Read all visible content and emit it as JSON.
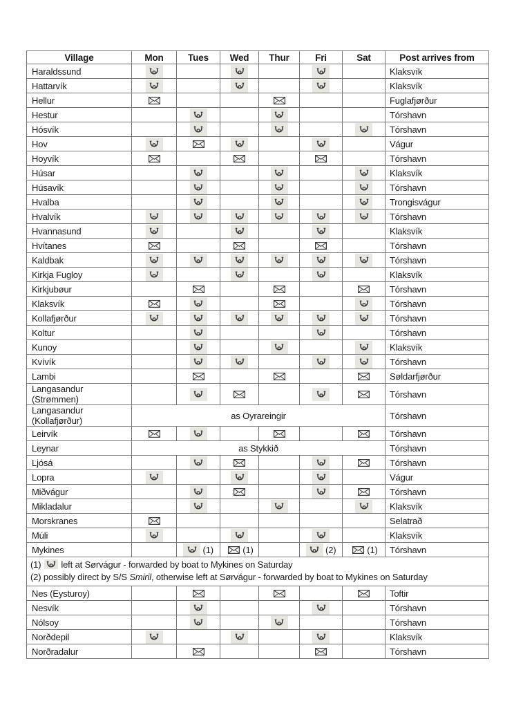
{
  "table": {
    "columns": [
      "Village",
      "Mon",
      "Tues",
      "Wed",
      "Thur",
      "Fri",
      "Sat",
      "Post arrives from"
    ],
    "icon_legend": {
      "h": "posthorn-icon",
      "e": "envelope-icon"
    },
    "colors": {
      "border": "#757575",
      "horn_highlight": "#e8e6e0",
      "text": "#1a1a1a"
    },
    "rows": [
      {
        "village": "Haraldssund",
        "days": [
          "h",
          "",
          "h",
          "",
          "h",
          ""
        ],
        "from": "Klaksvík"
      },
      {
        "village": "Hattarvík",
        "days": [
          "h",
          "",
          "h",
          "",
          "h",
          ""
        ],
        "from": "Klaksvík"
      },
      {
        "village": "Hellur",
        "days": [
          "e",
          "",
          "",
          "e",
          "",
          ""
        ],
        "from": "Fuglafjørður"
      },
      {
        "village": "Hestur",
        "days": [
          "",
          "h",
          "",
          "h",
          "",
          ""
        ],
        "from": "Tórshavn"
      },
      {
        "village": "Hósvík",
        "days": [
          "",
          "h",
          "",
          "h",
          "",
          "h"
        ],
        "from": "Tórshavn"
      },
      {
        "village": "Hov",
        "days": [
          "h",
          "e",
          "h",
          "",
          "h",
          ""
        ],
        "from": "Vágur"
      },
      {
        "village": "Hoyvík",
        "days": [
          "e",
          "",
          "e",
          "",
          "e",
          ""
        ],
        "from": "Tórshavn"
      },
      {
        "village": "Húsar",
        "days": [
          "",
          "h",
          "",
          "h",
          "",
          "h"
        ],
        "from": "Klaksvík"
      },
      {
        "village": "Húsavík",
        "days": [
          "",
          "h",
          "",
          "h",
          "",
          "h"
        ],
        "from": "Tórshavn"
      },
      {
        "village": "Hvalba",
        "days": [
          "",
          "h",
          "",
          "h",
          "",
          "h"
        ],
        "from": "Trongisvágur"
      },
      {
        "village": "Hvalvík",
        "days": [
          "h",
          "h",
          "h",
          "h",
          "h",
          "h"
        ],
        "from": "Tórshavn"
      },
      {
        "village": "Hvannasund",
        "days": [
          "h",
          "",
          "h",
          "",
          "h",
          ""
        ],
        "from": "Klaksvík"
      },
      {
        "village": "Hvítanes",
        "days": [
          "e",
          "",
          "e",
          "",
          "e",
          ""
        ],
        "from": "Tórshavn"
      },
      {
        "village": "Kaldbak",
        "days": [
          "h",
          "h",
          "h",
          "h",
          "h",
          "h"
        ],
        "from": "Tórshavn"
      },
      {
        "village": "Kirkja Fugloy",
        "days": [
          "h",
          "",
          "h",
          "",
          "h",
          ""
        ],
        "from": "Klaksvík"
      },
      {
        "village": "Kirkjubøur",
        "days": [
          "",
          "e",
          "",
          "e",
          "",
          "e"
        ],
        "from": "Tórshavn"
      },
      {
        "village": "Klaksvík",
        "days": [
          "e",
          "h",
          "",
          "e",
          "",
          "h"
        ],
        "from": "Tórshavn"
      },
      {
        "village": "Kollafjørður",
        "days": [
          "h",
          "h",
          "h",
          "h",
          "h",
          "h"
        ],
        "from": "Tórshavn"
      },
      {
        "village": "Koltur",
        "days": [
          "",
          "h",
          "",
          "",
          "h",
          ""
        ],
        "from": "Tórshavn"
      },
      {
        "village": "Kunoy",
        "days": [
          "",
          "h",
          "",
          "h",
          "",
          "h"
        ],
        "from": "Klaksvík"
      },
      {
        "village": "Kvívík",
        "days": [
          "",
          "h",
          "h",
          "",
          "h",
          "h"
        ],
        "from": "Tórshavn"
      },
      {
        "village": "Lambi",
        "days": [
          "",
          "e",
          "",
          "e",
          "",
          "e"
        ],
        "from": "Søldarfjørður"
      },
      {
        "village": "Langasandur (Strømmen)",
        "days": [
          "",
          "h",
          "e",
          "",
          "h",
          "e"
        ],
        "from": "Tórshavn"
      },
      {
        "village": "Langasandur (Kollafjørður)",
        "span": "as Oyrareingir",
        "from": "Tórshavn"
      },
      {
        "village": "Leirvík",
        "days": [
          "e",
          "h",
          "",
          "e",
          "",
          "e"
        ],
        "from": "Tórshavn"
      },
      {
        "village": "Leynar",
        "span": "as Stykkið",
        "from": "Tórshavn"
      },
      {
        "village": "Ljósá",
        "days": [
          "",
          "h",
          "e",
          "",
          "h",
          "e"
        ],
        "from": "Tórshavn"
      },
      {
        "village": "Lopra",
        "days": [
          "h",
          "",
          "h",
          "",
          "h",
          ""
        ],
        "from": "Vágur"
      },
      {
        "village": "Miðvágur",
        "days": [
          "",
          "h",
          "e",
          "",
          "h",
          "e"
        ],
        "from": "Tórshavn"
      },
      {
        "village": "Mikladalur",
        "days": [
          "",
          "h",
          "",
          "h",
          "",
          "h"
        ],
        "from": "Klaksvík"
      },
      {
        "village": "Morskranes",
        "days": [
          "e",
          "",
          "",
          "",
          "",
          ""
        ],
        "from": "Selatrað"
      },
      {
        "village": "Múli",
        "days": [
          "h",
          "",
          "h",
          "",
          "h",
          ""
        ],
        "from": "Klaksvík"
      },
      {
        "village": "Mykines",
        "days": [
          "",
          "h| (1)",
          "e|(1)",
          "",
          "h| (2)",
          "e|(1)"
        ],
        "from": "Tórshavn"
      },
      {
        "note": [
          [
            {
              "t": "(1) "
            },
            {
              "i": "h"
            },
            {
              "t": " left at Sørvágur - forwarded by boat to Mykines on Saturday"
            }
          ],
          [
            {
              "t": "(2) possibly direct by S/S "
            },
            {
              "t": "Smiril",
              "italic": true
            },
            {
              "t": ", otherwise left at Sørvágur - forwarded by boat to Mykines on Saturday"
            }
          ]
        ]
      },
      {
        "village": "Nes (Eysturoy)",
        "days": [
          "",
          "e",
          "",
          "e",
          "",
          "e"
        ],
        "from": "Toftir"
      },
      {
        "village": "Nesvík",
        "days": [
          "",
          "h",
          "",
          "",
          "h",
          ""
        ],
        "from": "Tórshavn"
      },
      {
        "village": "Nólsoy",
        "days": [
          "",
          "h",
          "",
          "h",
          "",
          ""
        ],
        "from": "Tórshavn"
      },
      {
        "village": "Norðdepil",
        "days": [
          "h",
          "",
          "h",
          "",
          "h",
          ""
        ],
        "from": "Klaksvík"
      },
      {
        "village": "Norðradalur",
        "days": [
          "",
          "e",
          "",
          "",
          "e",
          ""
        ],
        "from": "Tórshavn"
      }
    ]
  }
}
